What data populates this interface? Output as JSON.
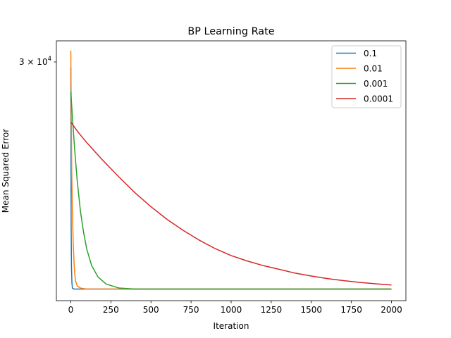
{
  "chart_data": {
    "type": "line",
    "title": "BP Learning Rate",
    "xlabel": "Iteration",
    "ylabel": "Mean Squared Error",
    "xlim": [
      -90,
      2090
    ],
    "ylim": [
      10750,
      32850
    ],
    "y_scale": "log",
    "xticks": [
      0,
      250,
      500,
      750,
      1000,
      1250,
      1500,
      1750,
      2000
    ],
    "yticks": [
      {
        "value": 30000,
        "label": "3 × 10^4",
        "mantissa": "3",
        "base": "10",
        "exp": "4"
      }
    ],
    "grid": false,
    "legend_position": "top-right",
    "series": [
      {
        "name": "0.1",
        "color": "#1f77b4",
        "x": [
          0,
          2,
          4,
          7,
          10,
          20,
          50,
          100,
          500,
          1000,
          2000
        ],
        "y": [
          29300,
          15000,
          12500,
          11600,
          11350,
          11300,
          11300,
          11300,
          11300,
          11300,
          11300
        ]
      },
      {
        "name": "0.01",
        "color": "#ff7f0e",
        "x": [
          0,
          3,
          6,
          10,
          15,
          20,
          25,
          30,
          40,
          60,
          100,
          500,
          1000,
          2000
        ],
        "y": [
          31500,
          23500,
          18500,
          15800,
          13800,
          12700,
          12000,
          11700,
          11450,
          11350,
          11300,
          11300,
          11300,
          11300
        ]
      },
      {
        "name": "0.001",
        "color": "#2ca02c",
        "x": [
          0,
          10,
          25,
          40,
          60,
          80,
          100,
          130,
          170,
          220,
          300,
          400,
          600,
          1000,
          2000
        ],
        "y": [
          26400,
          23700,
          20400,
          18000,
          15800,
          14400,
          13400,
          12500,
          11900,
          11550,
          11350,
          11300,
          11300,
          11300,
          11300
        ]
      },
      {
        "name": "0.0001",
        "color": "#d62728",
        "x": [
          0,
          50,
          100,
          200,
          300,
          400,
          500,
          600,
          700,
          800,
          900,
          1000,
          1100,
          1200,
          1300,
          1400,
          1500,
          1600,
          1700,
          1800,
          1900,
          2000
        ],
        "y": [
          23150,
          22100,
          21200,
          19650,
          18300,
          17100,
          16100,
          15250,
          14550,
          13950,
          13450,
          13050,
          12750,
          12500,
          12300,
          12100,
          11950,
          11820,
          11720,
          11630,
          11560,
          11500
        ]
      }
    ]
  }
}
